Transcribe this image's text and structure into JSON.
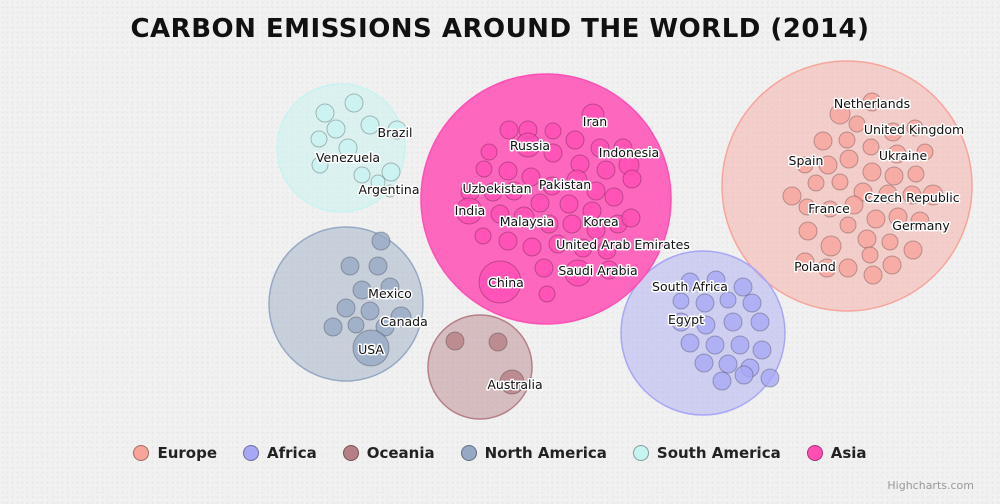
{
  "chart_data": {
    "type": "packedbubble",
    "title": "CARBON EMISSIONS AROUND THE WORLD (2014)",
    "legend_position": "bottom",
    "series": [
      {
        "name": "Europe",
        "color": "#f7a49b",
        "labels": [
          "Netherlands",
          "United Kingdom",
          "Spain",
          "Ukraine",
          "Czech Republic",
          "France",
          "Germany",
          "Poland"
        ]
      },
      {
        "name": "Africa",
        "color": "#a7a7f5",
        "labels": [
          "South Africa",
          "Egypt"
        ]
      },
      {
        "name": "Oceania",
        "color": "#b57f85",
        "labels": [
          "Australia"
        ]
      },
      {
        "name": "North America",
        "color": "#96a9c4",
        "labels": [
          "Mexico",
          "Canada",
          "USA"
        ]
      },
      {
        "name": "South America",
        "color": "#c7f3f1",
        "labels": [
          "Brazil",
          "Venezuela",
          "Argentina"
        ]
      },
      {
        "name": "Asia",
        "color": "#ff4fb5",
        "labels": [
          "Iran",
          "Russia",
          "Indonesia",
          "Pakistan",
          "Uzbekistan",
          "India",
          "Malaysia",
          "Korea",
          "United Arab Emirates",
          "Saudi Arabia",
          "China"
        ]
      }
    ]
  },
  "credits": "Highcharts.com"
}
